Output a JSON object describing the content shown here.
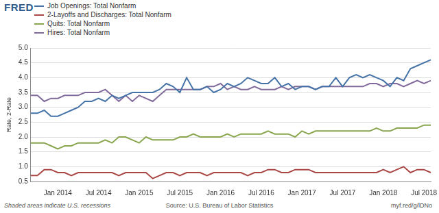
{
  "chart_data": {
    "type": "line",
    "title": "FRED",
    "y_label": "Rate, 2-Rate",
    "annotations": [
      "Shaded areas indicate U.S. recessions",
      "Source: U.S. Bureau of Labor Statistics",
      "myf.red/g/lDNo"
    ],
    "categories": [
      null,
      null,
      null,
      null,
      "Jan 2014",
      null,
      null,
      null,
      null,
      null,
      "Jul 2014",
      null,
      null,
      null,
      null,
      null,
      "Jan 2015",
      null,
      null,
      null,
      null,
      null,
      "Jul 2015",
      null,
      null,
      null,
      null,
      null,
      "Jan 2016",
      null,
      null,
      null,
      null,
      null,
      "Jul 2016",
      null,
      null,
      null,
      null,
      null,
      "Jan 2017",
      null,
      null,
      null,
      null,
      null,
      "Jul 2017",
      null,
      null,
      null,
      null,
      null,
      "Jan 2018",
      null,
      null,
      null,
      null,
      null,
      "Jul 2018",
      null
    ],
    "series": [
      {
        "name": "Job Openings: Total Nonfarm",
        "color": "#4572a7",
        "values": [
          2.8,
          2.8,
          2.9,
          2.7,
          2.7,
          2.8,
          2.9,
          3.0,
          3.2,
          3.2,
          3.3,
          3.2,
          3.4,
          3.3,
          3.4,
          3.5,
          3.5,
          3.5,
          3.5,
          3.6,
          3.8,
          3.7,
          3.5,
          4.0,
          3.6,
          3.6,
          3.7,
          3.5,
          3.6,
          3.8,
          3.7,
          3.8,
          4.0,
          3.9,
          3.8,
          3.8,
          4.0,
          3.7,
          3.8,
          3.6,
          3.7,
          3.7,
          3.6,
          3.7,
          3.7,
          4.0,
          3.7,
          4.0,
          4.1,
          4.0,
          4.1,
          4.0,
          3.9,
          3.7,
          4.0,
          3.9,
          4.3,
          4.4,
          4.5,
          4.6
        ]
      },
      {
        "name": "2-Layoffs and Discharges: Total Nonfarm",
        "color": "#aa4643",
        "values": [
          0.7,
          0.7,
          0.9,
          0.9,
          0.8,
          0.8,
          0.7,
          0.8,
          0.8,
          0.8,
          0.8,
          0.8,
          0.8,
          0.7,
          0.8,
          0.8,
          0.8,
          0.8,
          0.6,
          0.7,
          0.8,
          0.8,
          0.7,
          0.8,
          0.8,
          0.8,
          0.7,
          0.8,
          0.8,
          0.8,
          0.8,
          0.8,
          0.7,
          0.8,
          0.8,
          0.9,
          0.9,
          0.8,
          0.8,
          0.9,
          0.9,
          0.9,
          0.8,
          0.8,
          0.8,
          0.8,
          0.8,
          0.8,
          0.8,
          0.8,
          0.8,
          0.8,
          0.9,
          0.8,
          0.9,
          1.0,
          0.8,
          0.9,
          0.9,
          0.8
        ]
      },
      {
        "name": "Quits: Total Nonfarm",
        "color": "#89a54e",
        "values": [
          1.8,
          1.8,
          1.8,
          1.7,
          1.6,
          1.7,
          1.7,
          1.8,
          1.8,
          1.8,
          1.8,
          1.9,
          1.8,
          2.0,
          2.0,
          1.9,
          1.8,
          2.0,
          1.9,
          1.9,
          1.9,
          1.9,
          2.0,
          2.0,
          2.1,
          2.0,
          2.0,
          2.0,
          2.0,
          2.1,
          2.0,
          2.1,
          2.1,
          2.1,
          2.1,
          2.2,
          2.1,
          2.1,
          2.1,
          2.0,
          2.2,
          2.1,
          2.2,
          2.2,
          2.2,
          2.2,
          2.2,
          2.2,
          2.2,
          2.2,
          2.2,
          2.3,
          2.2,
          2.2,
          2.3,
          2.3,
          2.3,
          2.3,
          2.4,
          2.4
        ]
      },
      {
        "name": "Hires: Total Nonfarm",
        "color": "#80699b",
        "values": [
          3.4,
          3.4,
          3.2,
          3.3,
          3.3,
          3.4,
          3.4,
          3.4,
          3.5,
          3.5,
          3.5,
          3.6,
          3.4,
          3.2,
          3.4,
          3.2,
          3.4,
          3.3,
          3.2,
          3.4,
          3.6,
          3.6,
          3.6,
          3.6,
          3.6,
          3.6,
          3.7,
          3.7,
          3.8,
          3.6,
          3.7,
          3.6,
          3.6,
          3.7,
          3.6,
          3.6,
          3.6,
          3.7,
          3.6,
          3.7,
          3.7,
          3.7,
          3.6,
          3.7,
          3.7,
          3.7,
          3.7,
          3.7,
          3.7,
          3.7,
          3.8,
          3.8,
          3.7,
          3.8,
          3.8,
          3.7,
          3.8,
          3.9,
          3.8,
          3.9
        ]
      }
    ],
    "ylim": [
      0.5,
      5.0
    ],
    "yticks": [
      {
        "value": 0.5,
        "label": "0.5"
      },
      {
        "value": 1.0,
        "label": "1.0"
      },
      {
        "value": 1.5,
        "label": "1.5"
      },
      {
        "value": 2.0,
        "label": "2.0"
      },
      {
        "value": 2.5,
        "label": "2.5"
      },
      {
        "value": 3.0,
        "label": "3.0"
      },
      {
        "value": 3.5,
        "label": "3.5"
      },
      {
        "value": 4.0,
        "label": "4.0"
      },
      {
        "value": 4.5,
        "label": "4.5"
      },
      {
        "value": 5.0,
        "label": "5.0"
      }
    ],
    "grid": true,
    "legend": "top-left"
  }
}
